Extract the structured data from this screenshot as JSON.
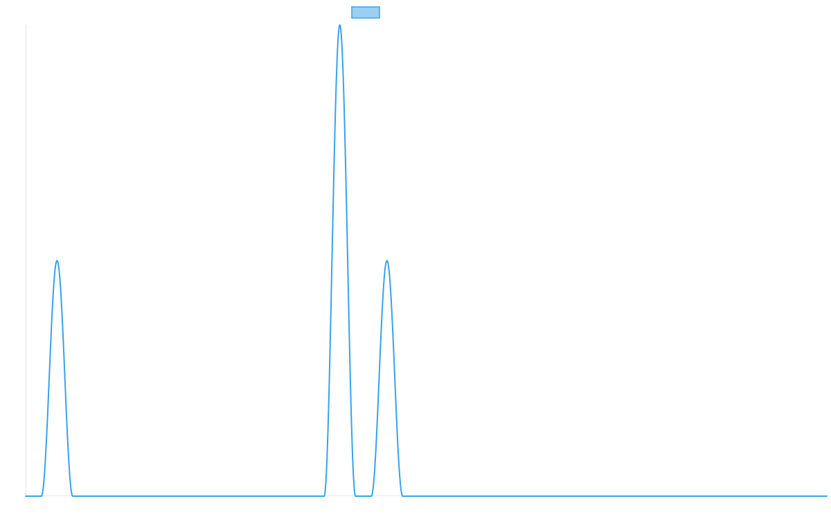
{
  "chart_data": {
    "type": "line",
    "title": "",
    "xlabel": "",
    "ylabel": "",
    "legend_position": "top-center",
    "grid": false,
    "show_tick_labels": false,
    "xlim": [
      0,
      51
    ],
    "ylim": [
      0,
      3
    ],
    "series": [
      {
        "label": "",
        "color": "#36a2eb",
        "fill_color": "#9ad0f5",
        "peaks": [
          {
            "center": 2,
            "height": 1.5,
            "start": 1,
            "end": 3
          },
          {
            "center": 20,
            "height": 3,
            "start": 19,
            "end": 21
          },
          {
            "center": 23,
            "height": 1.5,
            "start": 22,
            "end": 24
          }
        ]
      }
    ]
  }
}
